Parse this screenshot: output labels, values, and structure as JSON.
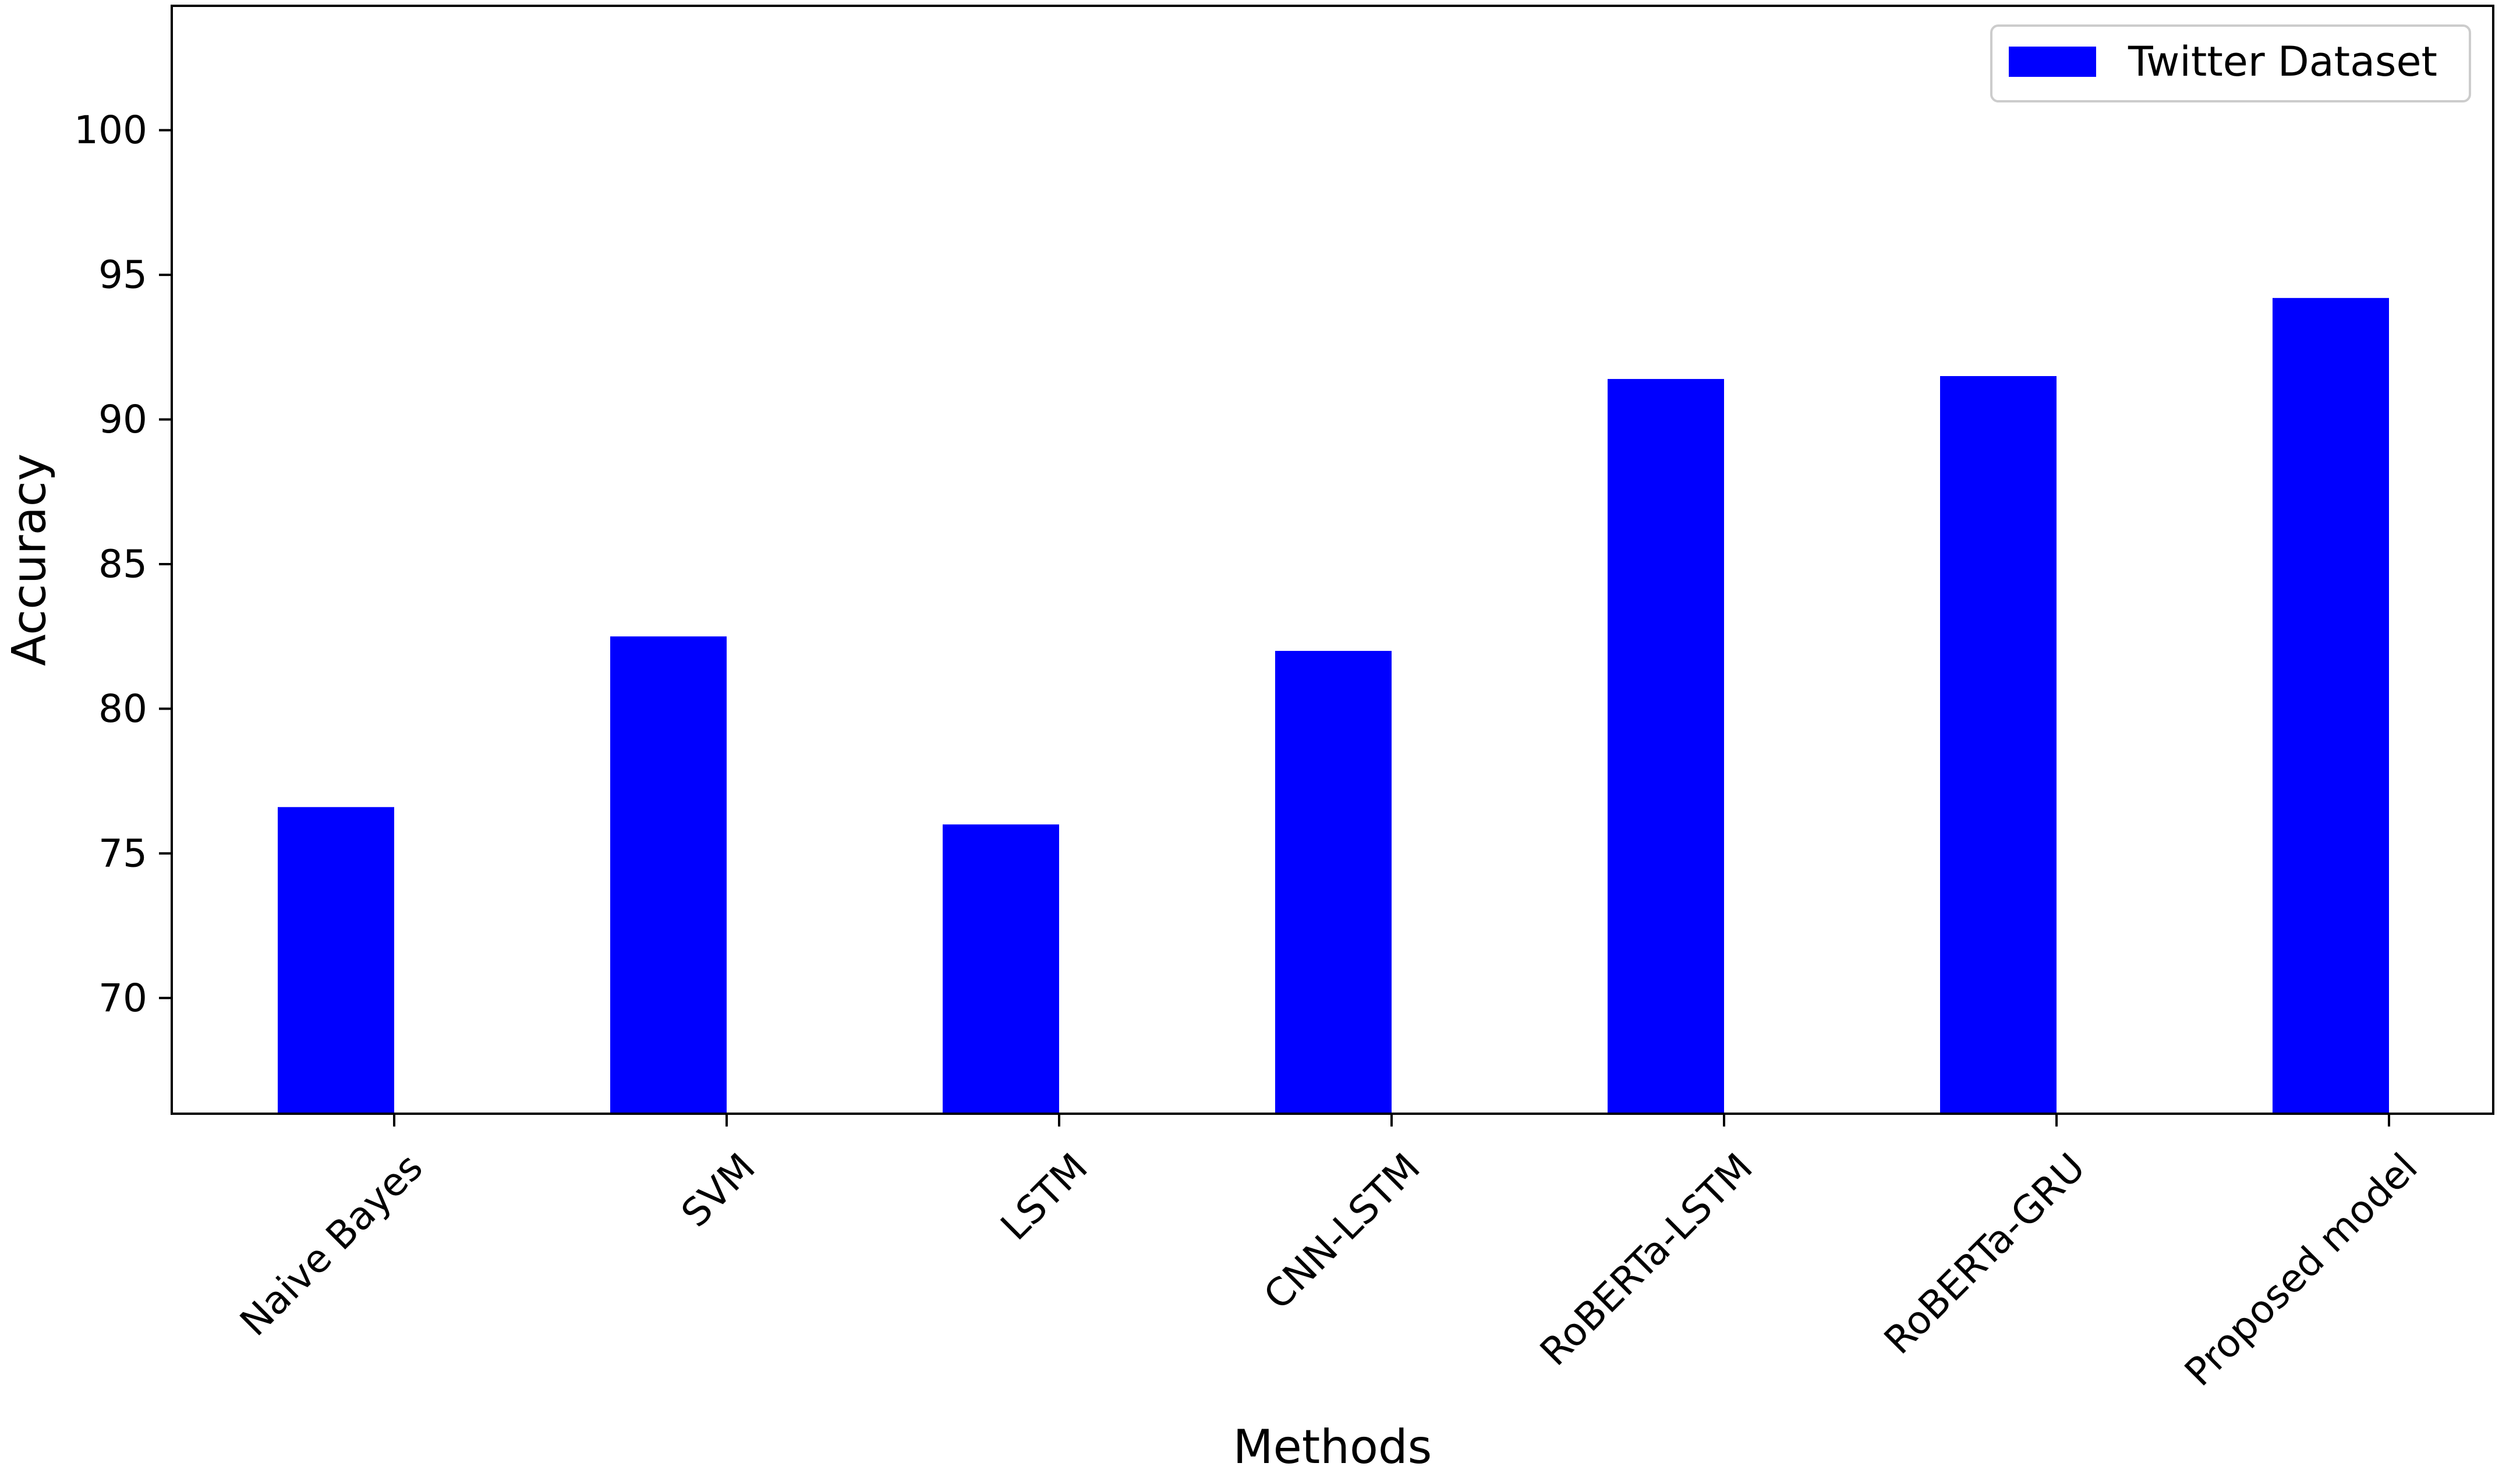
{
  "chart_data": {
    "type": "bar",
    "title": "",
    "xlabel": "Methods",
    "ylabel": "Accuracy",
    "categories": [
      "Naive Bayes",
      "SVM",
      "LSTM",
      "CNN-LSTM",
      "RoBERTa-LSTM",
      "RoBERTa-GRU",
      "Proposed model"
    ],
    "series": [
      {
        "name": "Twitter Dataset",
        "values": [
          76.6,
          82.5,
          76.0,
          82.0,
          91.4,
          91.5,
          94.2
        ]
      }
    ],
    "ylim": [
      66.0,
      104.3
    ],
    "yticks": [
      70,
      75,
      80,
      85,
      90,
      95,
      100
    ],
    "bar_color": "#0000ff",
    "grid": false,
    "legend_position": "top-right"
  }
}
